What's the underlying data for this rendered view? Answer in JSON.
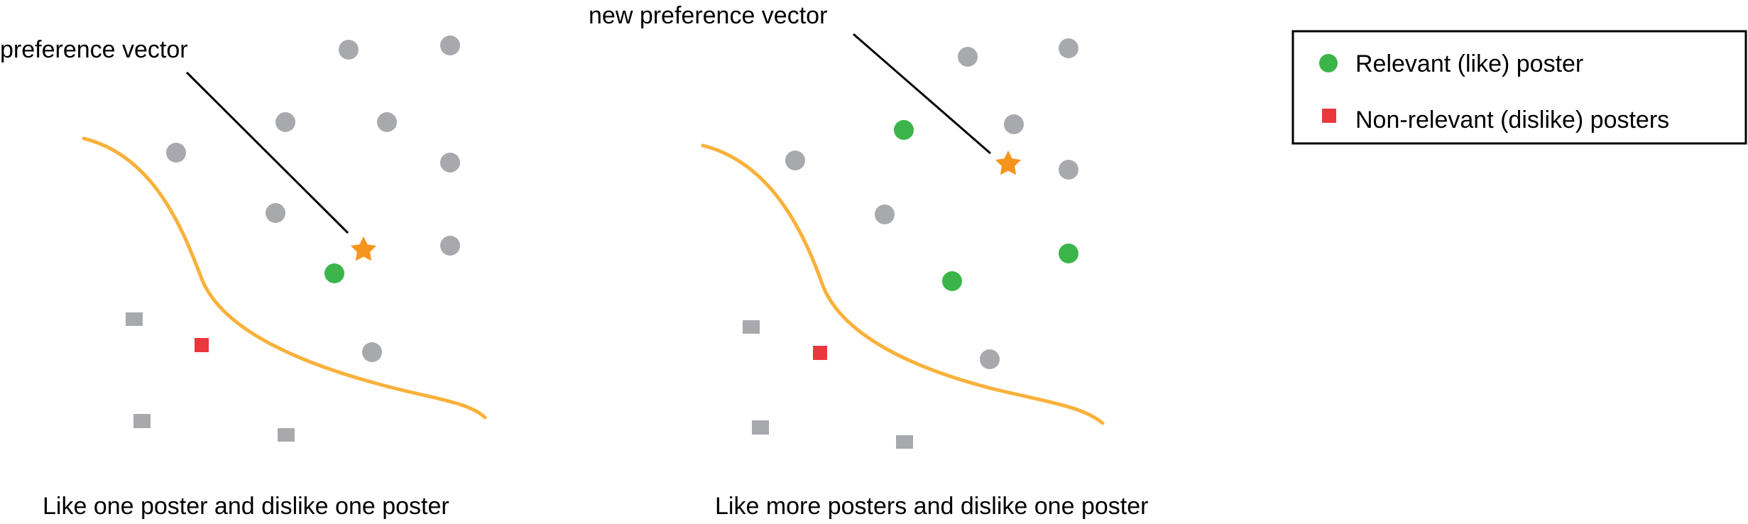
{
  "colors": {
    "relevant": "#3bb54a",
    "nonrelevant": "#e8383d",
    "neutral": "#a7a9ac",
    "boundary": "#f9b13b",
    "preference": "#f7941d",
    "ink": "#000000"
  },
  "panels": [
    {
      "id": "left",
      "caption": "Like one poster and dislike one poster",
      "pointer_label": "preference vector"
    },
    {
      "id": "right",
      "caption": "Like more posters and dislike one poster",
      "pointer_label": "new preference vector"
    }
  ],
  "legend": {
    "items": [
      {
        "label": "Relevant (like) poster",
        "marker": "green-circle-icon"
      },
      {
        "label": "Non-relevant (dislike) posters",
        "marker": "red-square-icon"
      }
    ]
  }
}
